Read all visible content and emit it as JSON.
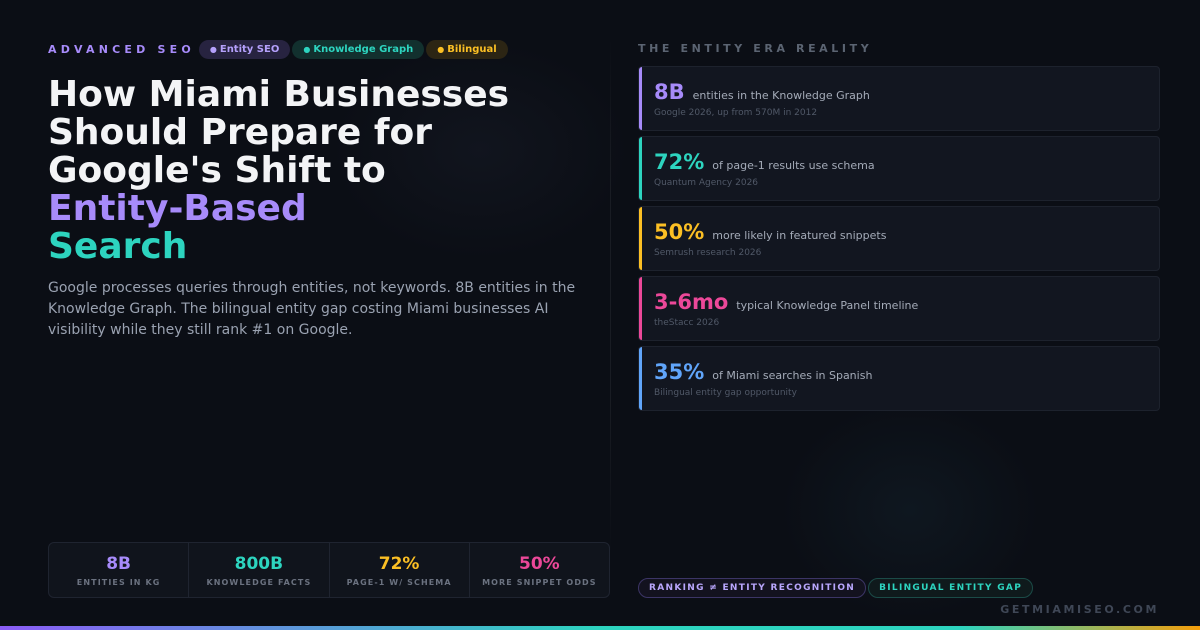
{
  "header": {
    "eyebrow": "ADVANCED SEO",
    "tags": [
      {
        "dot": "●",
        "label": "Entity SEO"
      },
      {
        "dot": "●",
        "label": "Knowledge Graph"
      },
      {
        "dot": "●",
        "label": "Bilingual"
      }
    ]
  },
  "headline": {
    "line1": "How Miami Businesses",
    "line2": "Should Prepare for",
    "line3": "Google's Shift to",
    "highlight1": "Entity-Based",
    "highlight2": "Search"
  },
  "lede": "Google processes queries through entities, not keywords. 8B entities in the Knowledge Graph. The bilingual entity gap costing Miami businesses AI visibility while they still rank #1 on Google.",
  "stat_strip": [
    {
      "value": "8B",
      "label": "ENTITIES IN KG",
      "color": "#a78bfa"
    },
    {
      "value": "800B",
      "label": "KNOWLEDGE FACTS",
      "color": "#2dd4bf"
    },
    {
      "value": "72%",
      "label": "PAGE-1 W/ SCHEMA",
      "color": "#fbbf24"
    },
    {
      "value": "50%",
      "label": "MORE SNIPPET ODDS",
      "color": "#ec4899"
    }
  ],
  "right": {
    "title": "THE ENTITY ERA REALITY",
    "cards": [
      {
        "value": "8B",
        "desc": "entities in the Knowledge Graph",
        "source": "Google 2026, up from 570M in 2012",
        "color": "#a78bfa"
      },
      {
        "value": "72%",
        "desc": "of page-1 results use schema",
        "source": "Quantum Agency 2026",
        "color": "#2dd4bf"
      },
      {
        "value": "50%",
        "desc": "more likely in featured snippets",
        "source": "Semrush research 2026",
        "color": "#fbbf24"
      },
      {
        "value": "3-6mo",
        "desc": "typical Knowledge Panel timeline",
        "source": "theStacc 2026",
        "color": "#ec4899"
      },
      {
        "value": "35%",
        "desc": "of Miami searches in Spanish",
        "source": "Bilingual entity gap opportunity",
        "color": "#60a5fa"
      }
    ]
  },
  "chips": [
    {
      "label": "RANKING ≠ ENTITY RECOGNITION"
    },
    {
      "label": "BILINGUAL ENTITY GAP"
    }
  ],
  "footer": {
    "domain": "GETMIAMISEO.COM"
  }
}
